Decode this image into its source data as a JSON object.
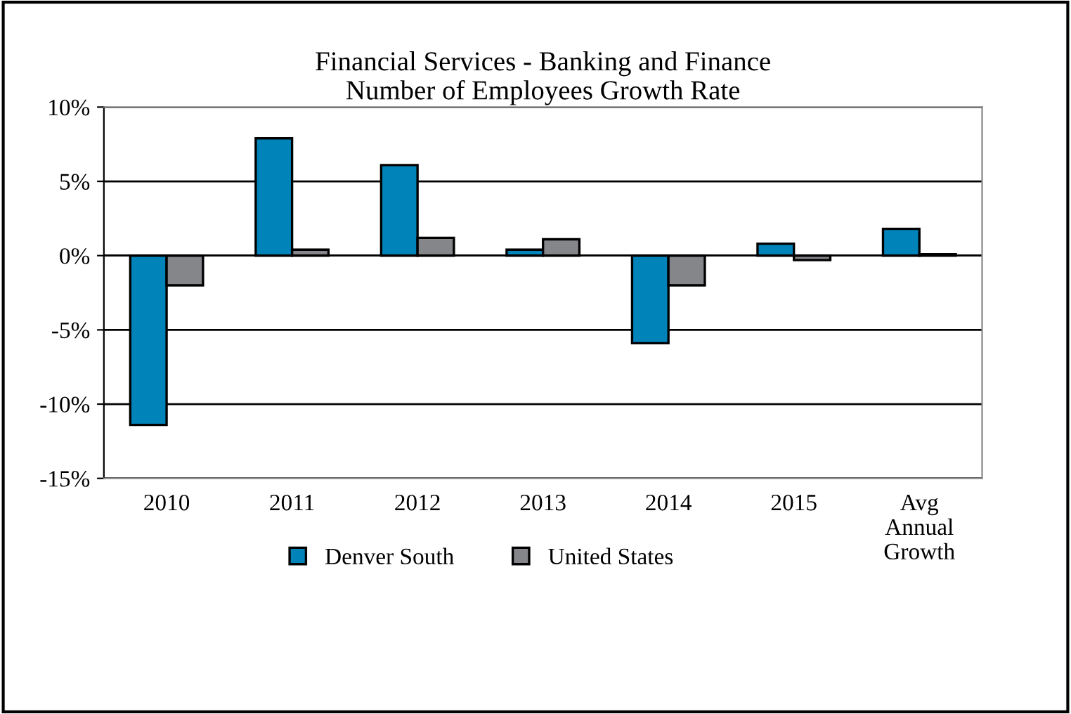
{
  "chart_data": {
    "type": "bar",
    "title": "Financial Services - Banking and Finance\nNumber of Employees Growth Rate",
    "categories": [
      "2010",
      "2011",
      "2012",
      "2013",
      "2014",
      "2015",
      "Avg\nAnnual\nGrowth"
    ],
    "series": [
      {
        "name": "Denver South",
        "color": "#0083b9",
        "values": [
          -11.4,
          7.9,
          6.1,
          0.4,
          -5.9,
          0.8,
          1.8
        ]
      },
      {
        "name": "United States",
        "color": "#85868a",
        "values": [
          -2.0,
          0.4,
          1.2,
          1.1,
          -2.0,
          -0.3,
          0.1
        ]
      }
    ],
    "ylim": [
      -15,
      10
    ],
    "yticks": [
      {
        "value": -15,
        "label": "-15%"
      },
      {
        "value": -10,
        "label": "-10%"
      },
      {
        "value": -5,
        "label": "-5%"
      },
      {
        "value": 0,
        "label": "0%"
      },
      {
        "value": 5,
        "label": "5%"
      },
      {
        "value": 10,
        "label": "10%"
      }
    ],
    "grid": "y",
    "legend": "bottom"
  }
}
